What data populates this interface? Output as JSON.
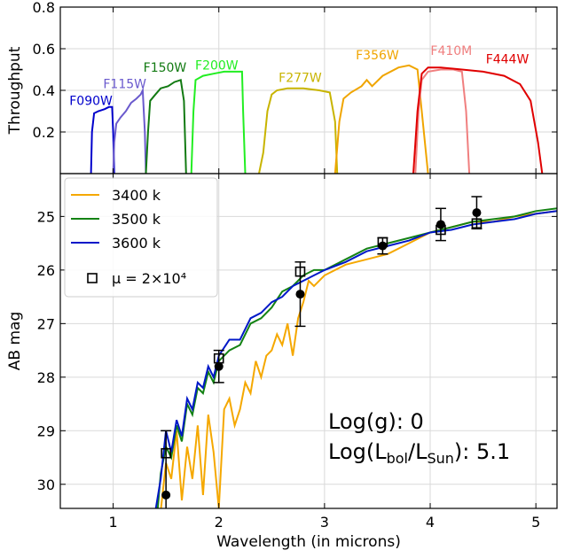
{
  "chart_data": [
    {
      "type": "line",
      "panel": "top",
      "xlabel": "",
      "ylabel": "Throughput",
      "xlim": [
        0.5,
        5.2
      ],
      "ylim": [
        0.0,
        0.8
      ],
      "yticks": [
        0.2,
        0.4,
        0.6,
        0.8
      ],
      "ytick_labels": [
        "0.2",
        "0.4",
        "0.6",
        "0.8"
      ],
      "grid": true,
      "series": [
        {
          "name": "F090W",
          "color": "#0000cc",
          "label_at": [
            0.79,
            0.33
          ],
          "points": [
            [
              0.79,
              0.0
            ],
            [
              0.8,
              0.2
            ],
            [
              0.82,
              0.29
            ],
            [
              0.86,
              0.3
            ],
            [
              0.92,
              0.31
            ],
            [
              0.96,
              0.32
            ],
            [
              0.99,
              0.32
            ],
            [
              1.0,
              0.2
            ],
            [
              1.01,
              0.0
            ]
          ]
        },
        {
          "name": "F115W",
          "color": "#6a5acd",
          "label_at": [
            1.11,
            0.41
          ],
          "points": [
            [
              1.0,
              0.0
            ],
            [
              1.01,
              0.15
            ],
            [
              1.03,
              0.24
            ],
            [
              1.07,
              0.27
            ],
            [
              1.12,
              0.3
            ],
            [
              1.17,
              0.34
            ],
            [
              1.22,
              0.36
            ],
            [
              1.26,
              0.38
            ],
            [
              1.28,
              0.4
            ],
            [
              1.3,
              0.2
            ],
            [
              1.31,
              0.0
            ]
          ]
        },
        {
          "name": "F150W",
          "color": "#127a12",
          "label_at": [
            1.49,
            0.49
          ],
          "points": [
            [
              1.31,
              0.0
            ],
            [
              1.33,
              0.2
            ],
            [
              1.35,
              0.35
            ],
            [
              1.4,
              0.38
            ],
            [
              1.45,
              0.41
            ],
            [
              1.52,
              0.42
            ],
            [
              1.58,
              0.44
            ],
            [
              1.64,
              0.45
            ],
            [
              1.67,
              0.35
            ],
            [
              1.69,
              0.0
            ]
          ]
        },
        {
          "name": "F200W",
          "color": "#22ee22",
          "label_at": [
            1.98,
            0.5
          ],
          "points": [
            [
              1.74,
              0.0
            ],
            [
              1.76,
              0.3
            ],
            [
              1.78,
              0.45
            ],
            [
              1.85,
              0.47
            ],
            [
              1.95,
              0.48
            ],
            [
              2.05,
              0.49
            ],
            [
              2.15,
              0.49
            ],
            [
              2.22,
              0.49
            ],
            [
              2.23,
              0.3
            ],
            [
              2.25,
              0.0
            ]
          ]
        },
        {
          "name": "F277W",
          "color": "#c8b400",
          "label_at": [
            2.77,
            0.44
          ],
          "points": [
            [
              2.38,
              0.0
            ],
            [
              2.42,
              0.1
            ],
            [
              2.46,
              0.3
            ],
            [
              2.5,
              0.38
            ],
            [
              2.55,
              0.4
            ],
            [
              2.65,
              0.41
            ],
            [
              2.8,
              0.41
            ],
            [
              2.95,
              0.4
            ],
            [
              3.05,
              0.39
            ],
            [
              3.1,
              0.25
            ],
            [
              3.12,
              0.0
            ]
          ]
        },
        {
          "name": "F356W",
          "color": "#f0a500",
          "label_at": [
            3.5,
            0.55
          ],
          "points": [
            [
              3.1,
              0.0
            ],
            [
              3.14,
              0.25
            ],
            [
              3.18,
              0.36
            ],
            [
              3.25,
              0.39
            ],
            [
              3.35,
              0.42
            ],
            [
              3.4,
              0.45
            ],
            [
              3.45,
              0.42
            ],
            [
              3.55,
              0.47
            ],
            [
              3.7,
              0.51
            ],
            [
              3.8,
              0.52
            ],
            [
              3.88,
              0.5
            ],
            [
              3.92,
              0.3
            ],
            [
              3.98,
              0.0
            ]
          ]
        },
        {
          "name": "F410M",
          "color": "#f07f7f",
          "label_at": [
            4.2,
            0.57
          ],
          "points": [
            [
              3.86,
              0.0
            ],
            [
              3.89,
              0.3
            ],
            [
              3.92,
              0.45
            ],
            [
              3.98,
              0.49
            ],
            [
              4.1,
              0.5
            ],
            [
              4.22,
              0.5
            ],
            [
              4.3,
              0.49
            ],
            [
              4.34,
              0.3
            ],
            [
              4.37,
              0.0
            ]
          ]
        },
        {
          "name": "F444W",
          "color": "#e00000",
          "label_at": [
            4.73,
            0.53
          ],
          "points": [
            [
              3.84,
              0.0
            ],
            [
              3.88,
              0.3
            ],
            [
              3.92,
              0.48
            ],
            [
              3.98,
              0.51
            ],
            [
              4.1,
              0.51
            ],
            [
              4.3,
              0.5
            ],
            [
              4.5,
              0.49
            ],
            [
              4.7,
              0.47
            ],
            [
              4.85,
              0.43
            ],
            [
              4.95,
              0.35
            ],
            [
              5.02,
              0.15
            ],
            [
              5.06,
              0.0
            ]
          ]
        }
      ]
    },
    {
      "type": "line",
      "panel": "bottom",
      "xlabel": "Wavelength (in microns)",
      "ylabel": "AB mag",
      "xlim": [
        0.5,
        5.2
      ],
      "ylim": [
        30.45,
        24.2
      ],
      "y_inverted": true,
      "xticks": [
        1,
        2,
        3,
        4,
        5
      ],
      "xtick_labels": [
        "1",
        "2",
        "3",
        "4",
        "5"
      ],
      "yticks": [
        25,
        26,
        27,
        28,
        29,
        30
      ],
      "ytick_labels": [
        "25",
        "26",
        "27",
        "28",
        "29",
        "30"
      ],
      "grid": true,
      "legend_position": "upper-left",
      "series": [
        {
          "name": "3400 k",
          "color": "#f5a800",
          "points": [
            [
              1.45,
              30.5
            ],
            [
              1.5,
              29.6
            ],
            [
              1.55,
              29.9
            ],
            [
              1.6,
              29.0
            ],
            [
              1.65,
              30.3
            ],
            [
              1.7,
              29.3
            ],
            [
              1.75,
              29.9
            ],
            [
              1.8,
              28.9
            ],
            [
              1.85,
              30.2
            ],
            [
              1.9,
              28.7
            ],
            [
              1.95,
              29.4
            ],
            [
              2.0,
              30.45
            ],
            [
              2.05,
              28.6
            ],
            [
              2.1,
              28.4
            ],
            [
              2.15,
              28.9
            ],
            [
              2.2,
              28.6
            ],
            [
              2.25,
              28.1
            ],
            [
              2.3,
              28.3
            ],
            [
              2.35,
              27.7
            ],
            [
              2.4,
              28.0
            ],
            [
              2.45,
              27.6
            ],
            [
              2.5,
              27.5
            ],
            [
              2.55,
              27.2
            ],
            [
              2.6,
              27.4
            ],
            [
              2.65,
              27.0
            ],
            [
              2.7,
              27.6
            ],
            [
              2.75,
              26.9
            ],
            [
              2.8,
              26.6
            ],
            [
              2.85,
              26.2
            ],
            [
              2.9,
              26.3
            ],
            [
              3.0,
              26.1
            ],
            [
              3.2,
              25.9
            ],
            [
              3.4,
              25.8
            ],
            [
              3.6,
              25.7
            ],
            [
              3.8,
              25.5
            ],
            [
              4.0,
              25.3
            ],
            [
              4.2,
              25.2
            ],
            [
              4.4,
              25.1
            ],
            [
              4.6,
              25.1
            ],
            [
              4.8,
              25.0
            ],
            [
              5.0,
              24.95
            ],
            [
              5.2,
              24.9
            ]
          ]
        },
        {
          "name": "3500 k",
          "color": "#148214",
          "points": [
            [
              1.42,
              30.5
            ],
            [
              1.45,
              29.8
            ],
            [
              1.5,
              29.3
            ],
            [
              1.55,
              29.5
            ],
            [
              1.6,
              28.9
            ],
            [
              1.65,
              29.2
            ],
            [
              1.7,
              28.5
            ],
            [
              1.75,
              28.7
            ],
            [
              1.8,
              28.2
            ],
            [
              1.85,
              28.3
            ],
            [
              1.9,
              27.9
            ],
            [
              1.95,
              28.1
            ],
            [
              2.0,
              27.7
            ],
            [
              2.1,
              27.5
            ],
            [
              2.2,
              27.4
            ],
            [
              2.3,
              27.0
            ],
            [
              2.4,
              26.9
            ],
            [
              2.5,
              26.7
            ],
            [
              2.6,
              26.4
            ],
            [
              2.7,
              26.3
            ],
            [
              2.8,
              26.1
            ],
            [
              2.9,
              26.0
            ],
            [
              3.0,
              26.0
            ],
            [
              3.2,
              25.8
            ],
            [
              3.4,
              25.6
            ],
            [
              3.6,
              25.5
            ],
            [
              3.8,
              25.4
            ],
            [
              4.0,
              25.3
            ],
            [
              4.2,
              25.2
            ],
            [
              4.4,
              25.1
            ],
            [
              4.6,
              25.05
            ],
            [
              4.8,
              25.0
            ],
            [
              5.0,
              24.9
            ],
            [
              5.2,
              24.85
            ]
          ]
        },
        {
          "name": "3600 k",
          "color": "#0018c8",
          "points": [
            [
              1.4,
              30.5
            ],
            [
              1.45,
              29.9
            ],
            [
              1.5,
              29.0
            ],
            [
              1.55,
              29.4
            ],
            [
              1.6,
              28.8
            ],
            [
              1.65,
              29.1
            ],
            [
              1.7,
              28.4
            ],
            [
              1.75,
              28.6
            ],
            [
              1.8,
              28.1
            ],
            [
              1.85,
              28.2
            ],
            [
              1.9,
              27.8
            ],
            [
              1.95,
              28.0
            ],
            [
              2.0,
              27.6
            ],
            [
              2.1,
              27.3
            ],
            [
              2.2,
              27.3
            ],
            [
              2.3,
              26.9
            ],
            [
              2.4,
              26.8
            ],
            [
              2.5,
              26.6
            ],
            [
              2.6,
              26.5
            ],
            [
              2.7,
              26.3
            ],
            [
              2.8,
              26.2
            ],
            [
              2.9,
              26.1
            ],
            [
              3.0,
              26.0
            ],
            [
              3.2,
              25.85
            ],
            [
              3.4,
              25.65
            ],
            [
              3.6,
              25.55
            ],
            [
              3.8,
              25.45
            ],
            [
              4.0,
              25.3
            ],
            [
              4.2,
              25.25
            ],
            [
              4.4,
              25.15
            ],
            [
              4.6,
              25.1
            ],
            [
              4.8,
              25.05
            ],
            [
              5.0,
              24.95
            ],
            [
              5.2,
              24.9
            ]
          ]
        }
      ],
      "markers": {
        "name": "μ = 2×10⁴",
        "squares": [
          [
            1.5,
            29.42
          ],
          [
            2.0,
            27.65
          ],
          [
            2.77,
            26.03
          ],
          [
            3.55,
            25.48
          ],
          [
            4.1,
            25.25
          ],
          [
            4.44,
            25.13
          ]
        ]
      },
      "observations": [
        {
          "x": 1.5,
          "y": 30.2,
          "yerr": 1.2
        },
        {
          "x": 2.0,
          "y": 27.8,
          "yerr": 0.3
        },
        {
          "x": 2.77,
          "y": 26.45,
          "yerr": 0.6
        },
        {
          "x": 3.55,
          "y": 25.55,
          "yerr": 0.15
        },
        {
          "x": 4.1,
          "y": 25.15,
          "yerr": 0.3
        },
        {
          "x": 4.44,
          "y": 24.93,
          "yerr": 0.3
        }
      ],
      "annotations": {
        "logg": "Log(g): 0",
        "lbol_prefix": "Log(L",
        "lbol_sub1": "bol",
        "lbol_mid": "/L",
        "lbol_sub2": "Sun",
        "lbol_suffix": "): 5.1"
      }
    }
  ]
}
